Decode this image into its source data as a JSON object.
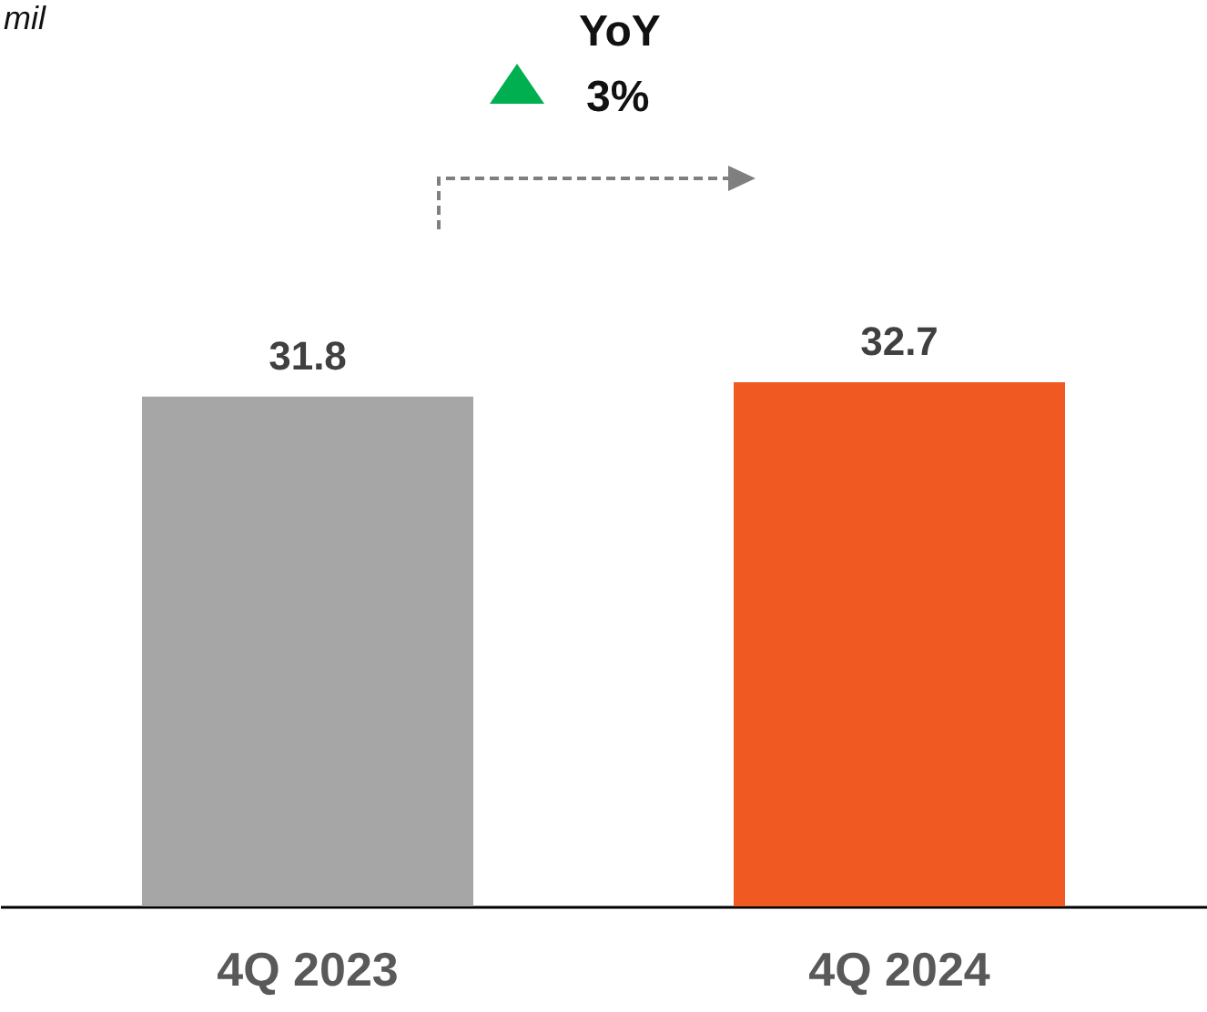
{
  "chart_data": {
    "type": "bar",
    "categories": [
      "4Q 2023",
      "4Q 2024"
    ],
    "values": [
      31.8,
      32.7
    ],
    "colors": [
      "#a6a6a6",
      "#f05a22"
    ],
    "tick_labels": "x",
    "data_labels": true,
    "annotations": [
      "mil",
      "YoY",
      "3%"
    ]
  }
}
